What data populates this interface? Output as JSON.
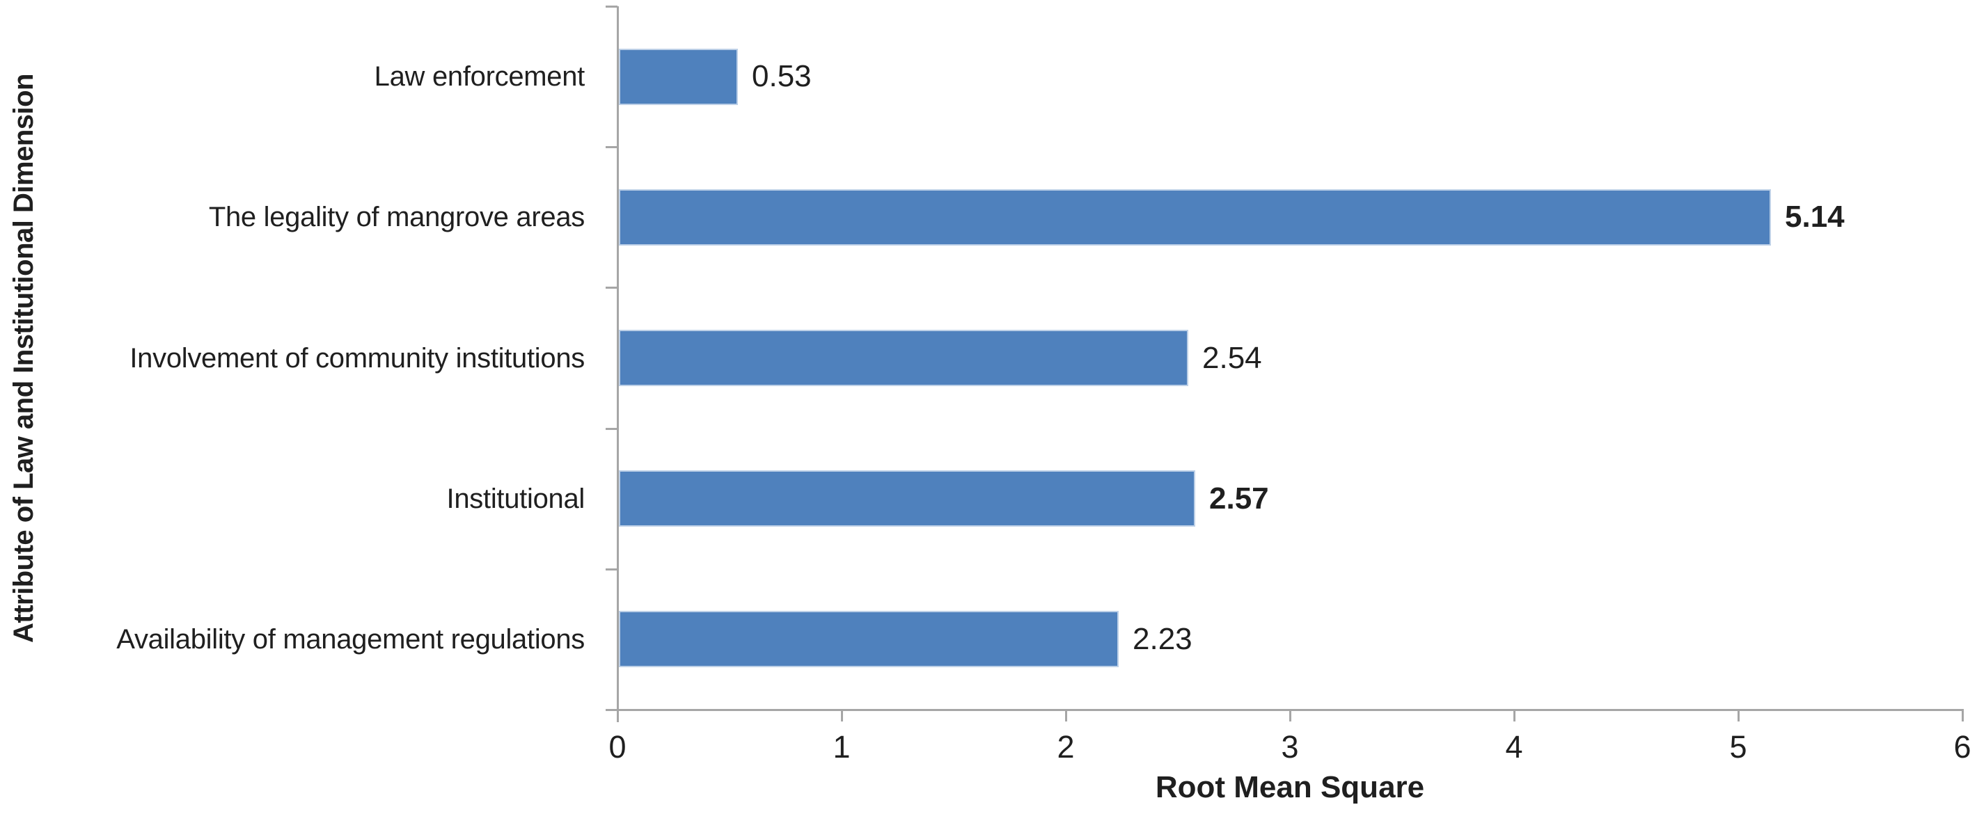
{
  "chart_data": {
    "type": "bar",
    "orientation": "horizontal",
    "title": "",
    "xlabel": "Root Mean Square",
    "ylabel": "Attribute of Law and Institutional Dimension",
    "categories": [
      "Law enforcement",
      "The legality of mangrove areas",
      "Involvement of community institutions",
      "Institutional",
      "Availability of management regulations"
    ],
    "values": [
      0.53,
      5.14,
      2.54,
      2.57,
      2.23
    ],
    "data_labels": [
      {
        "text": "0.53",
        "bold": false
      },
      {
        "text": "5.14",
        "bold": true
      },
      {
        "text": "2.54",
        "bold": false
      },
      {
        "text": "2.57",
        "bold": true
      },
      {
        "text": "2.23",
        "bold": false
      }
    ],
    "x_ticks": [
      "0",
      "1",
      "2",
      "3",
      "4",
      "5",
      "6"
    ],
    "xlim": [
      0,
      6
    ],
    "grid": false,
    "legend": null,
    "colors": {
      "bar_fill": "#4f81bd",
      "bar_border": "#bdd0e7",
      "axis_line": "#a6a6a6",
      "text": "#1f1f1f",
      "background": "#ffffff"
    }
  }
}
